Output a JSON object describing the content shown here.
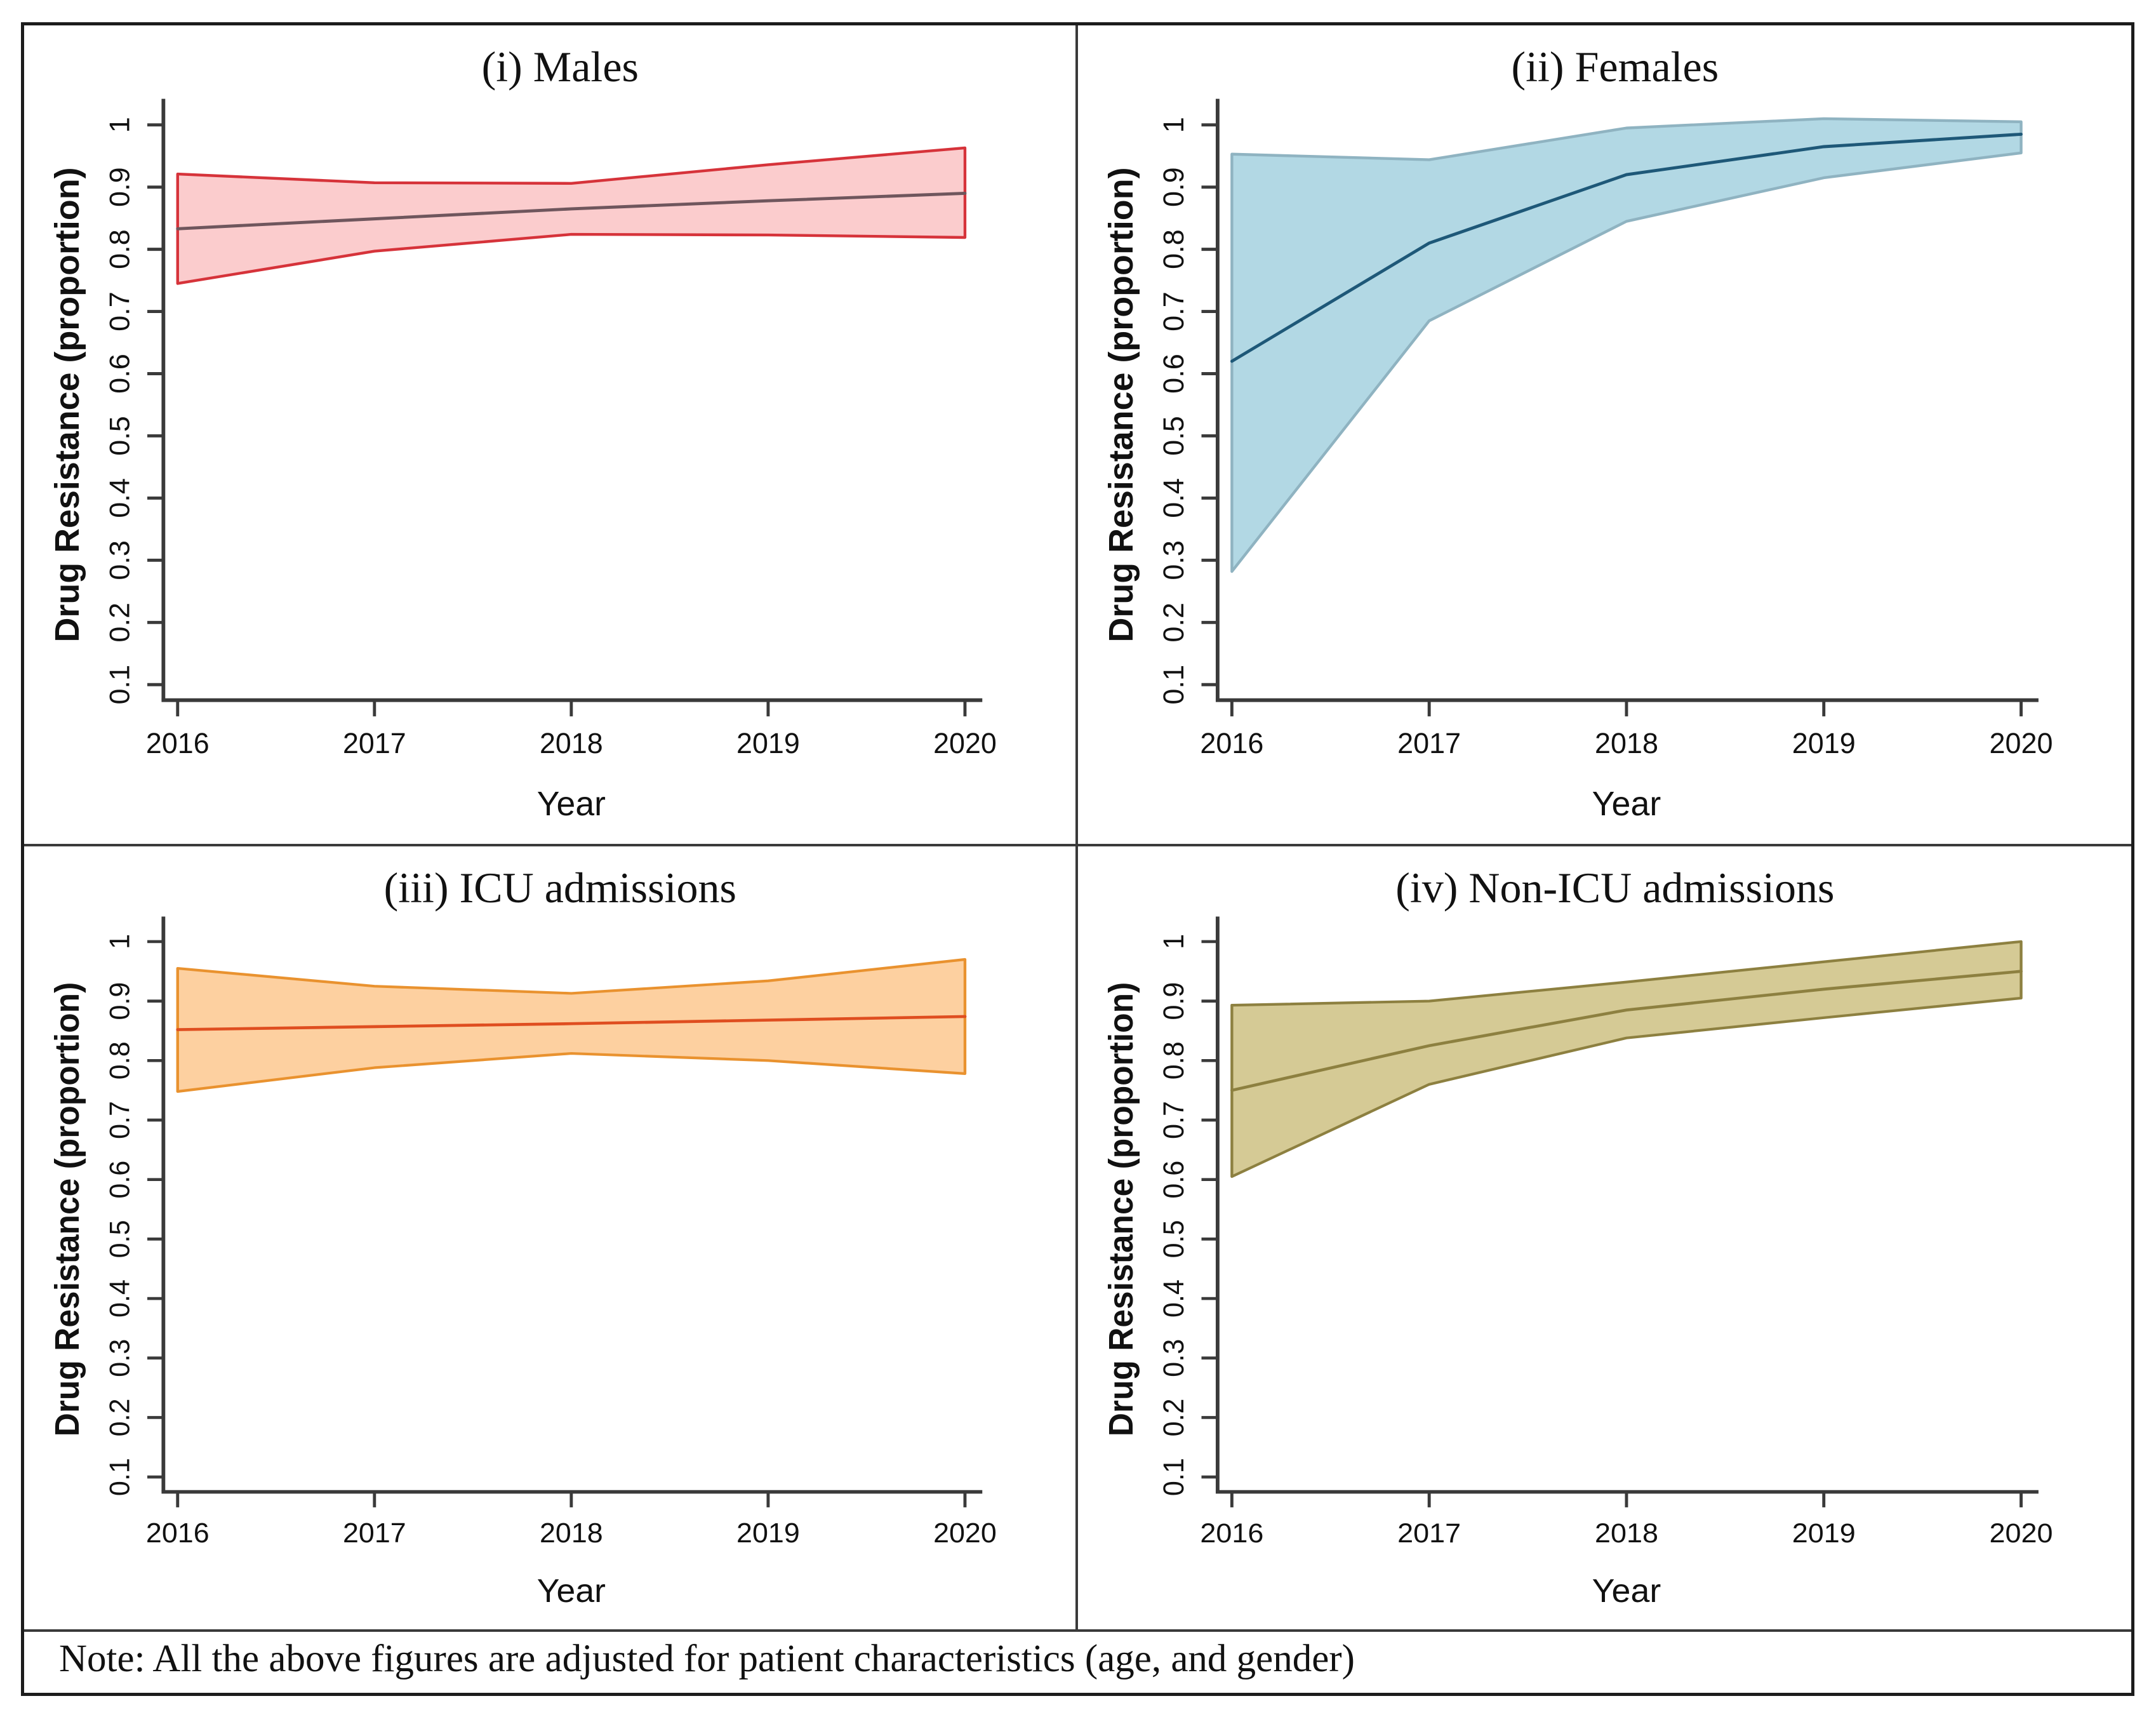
{
  "figure": {
    "note": "Note: All the above figures are adjusted for patient characteristics (age, and gender)",
    "axis_color": "#3a3a3a"
  },
  "chart_data": [
    {
      "id": "males",
      "type": "area",
      "title": "(i) Males",
      "xlabel": "Year",
      "ylabel": "Drug Resistance (proportion)",
      "x": [
        2016,
        2017,
        2018,
        2019,
        2020
      ],
      "xtick_labels": [
        "2016",
        "2017",
        "2018",
        "2019",
        "2020"
      ],
      "ytick_values": [
        0.1,
        0.2,
        0.3,
        0.4,
        0.5,
        0.6,
        0.7,
        0.8,
        0.9,
        1
      ],
      "ytick_labels": [
        "0.1",
        "0.2",
        "0.3",
        "0.4",
        "0.5",
        "0.6",
        "0.7",
        "0.8",
        "0.9",
        "1"
      ],
      "ylim": [
        0.05,
        1.045
      ],
      "legend": "none",
      "grid": false,
      "series": [
        {
          "name": "mean",
          "values": [
            0.833,
            0.849,
            0.865,
            0.878,
            0.89
          ]
        },
        {
          "name": "upper_ci",
          "values": [
            0.921,
            0.907,
            0.906,
            0.936,
            0.963
          ]
        },
        {
          "name": "lower_ci",
          "values": [
            0.745,
            0.797,
            0.824,
            0.823,
            0.819
          ]
        }
      ],
      "colors": {
        "band_fill": "#fbcccd",
        "band_edge": "#d6333a",
        "mean_line": "#6f565d"
      }
    },
    {
      "id": "females",
      "type": "area",
      "title": "(ii) Females",
      "xlabel": "Year",
      "ylabel": "Drug Resistance (proportion)",
      "x": [
        2016,
        2017,
        2018,
        2019,
        2020
      ],
      "xtick_labels": [
        "2016",
        "2017",
        "2018",
        "2019",
        "2020"
      ],
      "ytick_values": [
        0.1,
        0.2,
        0.3,
        0.4,
        0.5,
        0.6,
        0.7,
        0.8,
        0.9,
        1
      ],
      "ytick_labels": [
        "0.1",
        "0.2",
        "0.3",
        "0.4",
        "0.5",
        "0.6",
        "0.7",
        "0.8",
        "0.9",
        "1"
      ],
      "ylim": [
        0.05,
        1.045
      ],
      "legend": "none",
      "grid": false,
      "series": [
        {
          "name": "mean",
          "values": [
            0.62,
            0.81,
            0.92,
            0.965,
            0.985
          ]
        },
        {
          "name": "upper_ci",
          "values": [
            0.953,
            0.944,
            0.995,
            1.01,
            1.005
          ]
        },
        {
          "name": "lower_ci",
          "values": [
            0.282,
            0.685,
            0.845,
            0.915,
            0.955
          ]
        }
      ],
      "colors": {
        "band_fill": "#b2d8e4",
        "band_edge": "#8fb3c1",
        "mean_line": "#1e5878"
      }
    },
    {
      "id": "icu-admissions",
      "type": "area",
      "title": "(iii) ICU admissions",
      "xlabel": "Year",
      "ylabel": "Drug Resistance (proportion)",
      "x": [
        2016,
        2017,
        2018,
        2019,
        2020
      ],
      "xtick_labels": [
        "2016",
        "2017",
        "2018",
        "2019",
        "2020"
      ],
      "ytick_values": [
        0.1,
        0.2,
        0.3,
        0.4,
        0.5,
        0.6,
        0.7,
        0.8,
        0.9,
        1
      ],
      "ytick_labels": [
        "0.1",
        "0.2",
        "0.3",
        "0.4",
        "0.5",
        "0.6",
        "0.7",
        "0.8",
        "0.9",
        "1"
      ],
      "ylim": [
        0.05,
        1.045
      ],
      "legend": "none",
      "grid": false,
      "series": [
        {
          "name": "mean",
          "values": [
            0.852,
            0.857,
            0.862,
            0.868,
            0.874
          ]
        },
        {
          "name": "upper_ci",
          "values": [
            0.955,
            0.925,
            0.913,
            0.934,
            0.97
          ]
        },
        {
          "name": "lower_ci",
          "values": [
            0.748,
            0.788,
            0.812,
            0.8,
            0.778
          ]
        }
      ],
      "colors": {
        "band_fill": "#fdd0a0",
        "band_edge": "#e9922f",
        "mean_line": "#df4e20"
      }
    },
    {
      "id": "non-icu-admissions",
      "type": "area",
      "title": "(iv) Non-ICU admissions",
      "xlabel": "Year",
      "ylabel": "Drug Resistance (proportion)",
      "x": [
        2016,
        2017,
        2018,
        2019,
        2020
      ],
      "xtick_labels": [
        "2016",
        "2017",
        "2018",
        "2019",
        "2020"
      ],
      "ytick_values": [
        0.1,
        0.2,
        0.3,
        0.4,
        0.5,
        0.6,
        0.7,
        0.8,
        0.9,
        1
      ],
      "ytick_labels": [
        "0.1",
        "0.2",
        "0.3",
        "0.4",
        "0.5",
        "0.6",
        "0.7",
        "0.8",
        "0.9",
        "1"
      ],
      "ylim": [
        0.05,
        1.045
      ],
      "legend": "none",
      "grid": false,
      "series": [
        {
          "name": "mean",
          "values": [
            0.75,
            0.825,
            0.885,
            0.92,
            0.95
          ]
        },
        {
          "name": "upper_ci",
          "values": [
            0.893,
            0.9,
            0.932,
            0.966,
            1.0
          ]
        },
        {
          "name": "lower_ci",
          "values": [
            0.605,
            0.76,
            0.838,
            0.872,
            0.905
          ]
        }
      ],
      "colors": {
        "band_fill": "#d5ca95",
        "band_edge": "#8d8040",
        "mean_line": "#8d8040"
      }
    }
  ]
}
